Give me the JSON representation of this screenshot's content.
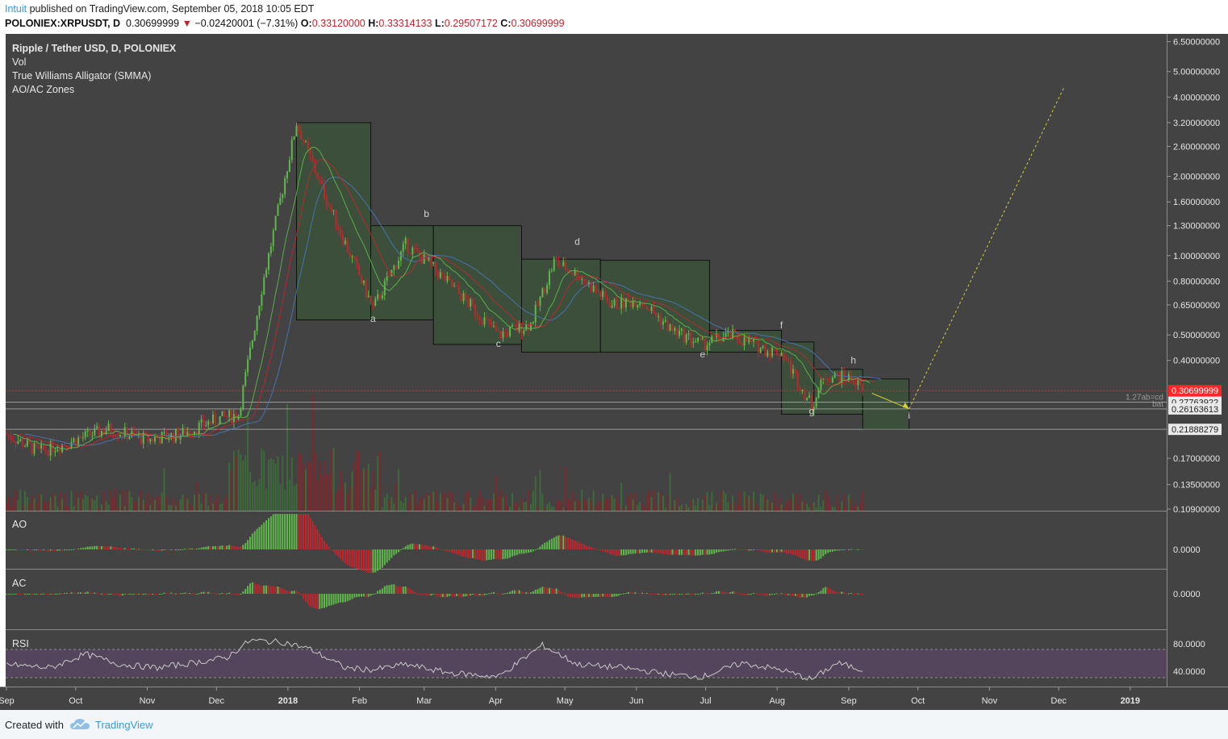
{
  "header": {
    "author": "Intuit",
    "published": "published on TradingView.com, September 05, 2018 10:05 EDT",
    "symbol": "POLONIEX:XRPUSDT, D",
    "last": "0.30699999",
    "arrow": "▼",
    "change": "−0.02420001 (−7.31%)",
    "o_label": "O:",
    "o_value": "0.33120000",
    "h_label": "H:",
    "h_value": "0.33314133",
    "l_label": "L:",
    "l_value": "0.29507172",
    "c_label": "C:",
    "c_value": "0.30699999"
  },
  "legend": {
    "main": "Ripple / Tether USD, D, POLONIEX",
    "vol": "Vol",
    "alligator": "True Williams Alligator (SMMA)",
    "zones": "AO/AC Zones"
  },
  "panes": {
    "ao": "AO",
    "ac": "AC",
    "rsi": "RSI"
  },
  "footer": {
    "created": "Created with",
    "brand": "TradingView"
  },
  "colors": {
    "background": "#434343",
    "up": "#5fb84b",
    "down": "#c1262d",
    "box_fill": "#39513a",
    "rsi_band": "#54445c",
    "arrow_projection": "#d4cf3c",
    "last_price_tag": "#ff2626"
  },
  "chart_data": {
    "type": "candlestick",
    "title": "Ripple / Tether USD, D, POLONIEX",
    "scale": "log",
    "price_axis_ticks": [
      "6.50000000",
      "5.00000000",
      "4.00000000",
      "3.20000000",
      "2.60000000",
      "2.00000000",
      "1.60000000",
      "1.30000000",
      "1.00000000",
      "0.80000000",
      "0.65000000",
      "0.50000000",
      "0.40000000",
      "0.30699999",
      "0.27763922",
      "0.26163613",
      "0.21888279",
      "0.17000000",
      "0.13500000",
      "0.10900000"
    ],
    "time_axis": [
      "Sep",
      "Oct",
      "Nov",
      "Dec",
      "2018",
      "Feb",
      "Mar",
      "Apr",
      "May",
      "Jun",
      "Jul",
      "Aug",
      "Sep",
      "Oct",
      "Nov",
      "Dec",
      "2019"
    ],
    "price_path": {
      "dates": [
        "2017-09-01",
        "2017-09-15",
        "2017-10-01",
        "2017-10-15",
        "2017-11-01",
        "2017-11-15",
        "2017-12-01",
        "2017-12-10",
        "2017-12-20",
        "2018-01-04",
        "2018-01-15",
        "2018-02-06",
        "2018-02-20",
        "2018-03-01",
        "2018-03-15",
        "2018-04-01",
        "2018-04-15",
        "2018-04-25",
        "2018-05-05",
        "2018-05-20",
        "2018-06-01",
        "2018-06-15",
        "2018-06-28",
        "2018-07-10",
        "2018-07-25",
        "2018-08-01",
        "2018-08-14",
        "2018-08-20",
        "2018-09-01",
        "2018-09-05"
      ],
      "close": [
        0.21,
        0.18,
        0.2,
        0.22,
        0.2,
        0.21,
        0.24,
        0.25,
        0.75,
        3.2,
        1.8,
        0.63,
        1.1,
        0.95,
        0.72,
        0.5,
        0.55,
        0.95,
        0.85,
        0.65,
        0.68,
        0.52,
        0.46,
        0.5,
        0.44,
        0.43,
        0.27,
        0.35,
        0.34,
        0.307
      ]
    },
    "wave_labels": [
      {
        "label": "a",
        "date": "2018-02-06",
        "price": 0.56
      },
      {
        "label": "b",
        "date": "2018-03-01",
        "price": 1.4
      },
      {
        "label": "c",
        "date": "2018-04-01",
        "price": 0.45
      },
      {
        "label": "d",
        "date": "2018-05-05",
        "price": 1.1
      },
      {
        "label": "e",
        "date": "2018-06-28",
        "price": 0.41
      },
      {
        "label": "f",
        "date": "2018-08-01",
        "price": 0.53
      },
      {
        "label": "g",
        "date": "2018-08-14",
        "price": 0.25
      },
      {
        "label": "h",
        "date": "2018-09-01",
        "price": 0.39
      },
      {
        "label": "i",
        "date": "2018-09-25",
        "price": 0.24
      }
    ],
    "zones": [
      {
        "from": "2018-01-04",
        "to": "2018-02-05",
        "low": 0.57,
        "high": 3.2
      },
      {
        "from": "2018-02-05",
        "to": "2018-03-04",
        "low": 0.57,
        "high": 1.3
      },
      {
        "from": "2018-03-04",
        "to": "2018-04-11",
        "low": 0.46,
        "high": 1.3
      },
      {
        "from": "2018-04-11",
        "to": "2018-05-15",
        "low": 0.43,
        "high": 0.97
      },
      {
        "from": "2018-05-15",
        "to": "2018-07-01",
        "low": 0.43,
        "high": 0.96
      },
      {
        "from": "2018-07-01",
        "to": "2018-08-01",
        "low": 0.43,
        "high": 0.52
      },
      {
        "from": "2018-08-01",
        "to": "2018-08-15",
        "low": 0.25,
        "high": 0.47
      },
      {
        "from": "2018-08-15",
        "to": "2018-09-05",
        "low": 0.25,
        "high": 0.37
      },
      {
        "from": "2018-09-05",
        "to": "2018-09-25",
        "low": 0.219,
        "high": 0.34
      }
    ],
    "horizontal_levels": [
      {
        "price": 0.30699999,
        "label": "0.30699999"
      },
      {
        "price": 0.27763922,
        "label": "0.27763922",
        "note": "1.27ab=cd"
      },
      {
        "price": 0.26163613,
        "label": "0.26163613",
        "note": "bat"
      },
      {
        "price": 0.21888279,
        "label": "0.21888279"
      }
    ],
    "projection": {
      "arrow": {
        "from_date": "2018-09-09",
        "from_price": 0.3,
        "to_date": "2018-09-25",
        "to_price": 0.262
      },
      "dotted": {
        "from_date": "2018-09-25",
        "from_price": 0.262,
        "to_date": "2018-12-01",
        "to_price": 4.4
      }
    },
    "ao_ticks": [
      "0.0000"
    ],
    "ac_ticks": [
      "0.0000"
    ],
    "rsi_ticks": [
      "80.0000",
      "40.0000"
    ],
    "rsi_bounds": [
      70,
      30
    ],
    "rsi_values": {
      "dates": [
        "2017-09-01",
        "2017-09-20",
        "2017-10-05",
        "2017-10-20",
        "2017-11-05",
        "2017-11-20",
        "2017-12-05",
        "2017-12-15",
        "2017-12-30",
        "2018-01-10",
        "2018-01-25",
        "2018-02-06",
        "2018-02-20",
        "2018-03-10",
        "2018-04-01",
        "2018-04-20",
        "2018-05-05",
        "2018-05-25",
        "2018-06-15",
        "2018-06-28",
        "2018-07-15",
        "2018-08-01",
        "2018-08-14",
        "2018-08-25",
        "2018-09-05"
      ],
      "values": [
        50,
        45,
        65,
        50,
        45,
        52,
        60,
        85,
        82,
        72,
        45,
        42,
        50,
        38,
        32,
        78,
        50,
        45,
        35,
        32,
        52,
        42,
        28,
        52,
        42
      ]
    }
  }
}
